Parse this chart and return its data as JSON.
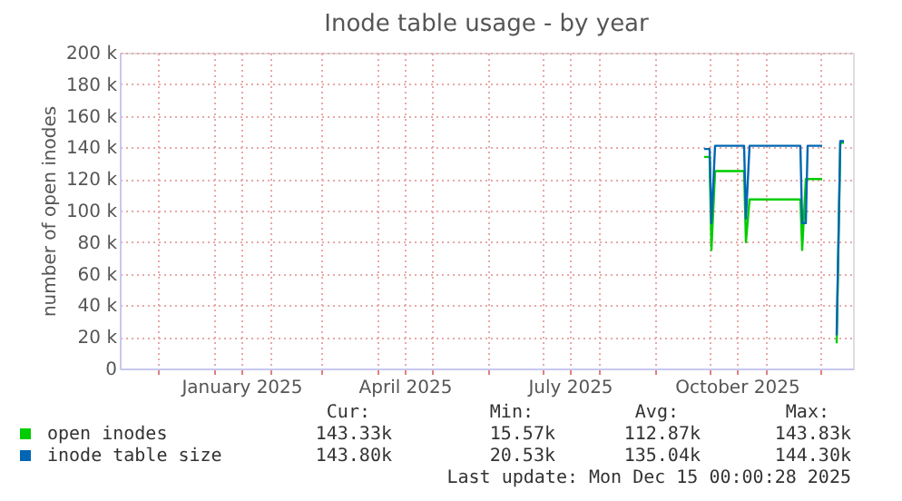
{
  "chart_data": {
    "type": "line",
    "title": "Inode table usage - by year",
    "ylabel": "number of open inodes",
    "x": [
      "2025-09-28",
      "2025-10-01",
      "2025-10-02",
      "2025-10-04",
      "2025-10-20",
      "2025-10-21",
      "2025-10-23",
      "2025-10-24",
      "2025-11-20",
      "2025-11-21",
      "2025-11-23",
      "2025-11-24",
      "2025-12-02",
      "2025-12-06",
      "2025-12-10",
      "2025-12-12",
      "2025-12-14"
    ],
    "series": [
      {
        "name": "open inodes",
        "color": "#00cc00",
        "values": [
          134000,
          134000,
          75000,
          125000,
          125000,
          80000,
          107000,
          107000,
          107000,
          75000,
          120000,
          120000,
          120000,
          null,
          16000,
          143000,
          143000
        ]
      },
      {
        "name": "inode table size",
        "color": "#0066b3",
        "values": [
          139000,
          139000,
          92000,
          141000,
          141000,
          95000,
          141000,
          141000,
          141000,
          92000,
          92000,
          141000,
          141000,
          null,
          21000,
          144000,
          144000
        ]
      }
    ],
    "xlim": [
      "2024-11-10",
      "2025-12-19"
    ],
    "xticks": [
      {
        "value": "2024-12-01",
        "label": null
      },
      {
        "value": "2025-01-01",
        "label": null
      },
      {
        "value": "2025-01-16",
        "label": "January 2025"
      },
      {
        "value": "2025-02-01",
        "label": null
      },
      {
        "value": "2025-03-01",
        "label": null
      },
      {
        "value": "2025-04-01",
        "label": null
      },
      {
        "value": "2025-04-16",
        "label": "April 2025"
      },
      {
        "value": "2025-05-01",
        "label": null
      },
      {
        "value": "2025-06-01",
        "label": null
      },
      {
        "value": "2025-07-01",
        "label": null
      },
      {
        "value": "2025-07-16",
        "label": "July 2025"
      },
      {
        "value": "2025-08-01",
        "label": null
      },
      {
        "value": "2025-09-01",
        "label": null
      },
      {
        "value": "2025-10-01",
        "label": null
      },
      {
        "value": "2025-10-16",
        "label": "October 2025"
      },
      {
        "value": "2025-11-01",
        "label": null
      },
      {
        "value": "2025-12-01",
        "label": null
      }
    ],
    "ylim": [
      0,
      200000
    ],
    "yticks": [
      {
        "value": 0,
        "label": "0"
      },
      {
        "value": 20000,
        "label": "20 k"
      },
      {
        "value": 40000,
        "label": "40 k"
      },
      {
        "value": 60000,
        "label": "60 k"
      },
      {
        "value": 80000,
        "label": "80 k"
      },
      {
        "value": 100000,
        "label": "100 k"
      },
      {
        "value": 120000,
        "label": "120 k"
      },
      {
        "value": 140000,
        "label": "140 k"
      },
      {
        "value": 160000,
        "label": "160 k"
      },
      {
        "value": 180000,
        "label": "180 k"
      },
      {
        "value": 200000,
        "label": "200 k"
      }
    ],
    "grid": true,
    "legend": "bottom",
    "marker": "none",
    "line_style": "solid",
    "annotations": [
      "Cur:",
      "Min:",
      "Avg:",
      "Max:",
      "143.33k",
      "15.57k",
      "112.87k",
      "143.83k",
      "143.80k",
      "20.53k",
      "135.04k",
      "144.30k",
      "Last update: Mon Dec 15 00:00:28 2025"
    ]
  }
}
